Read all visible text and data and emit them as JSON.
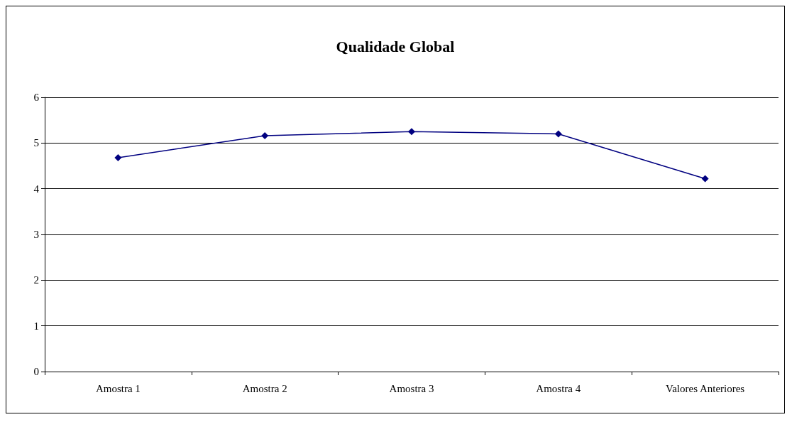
{
  "chart_data": {
    "type": "line",
    "title": "Qualidade Global",
    "categories": [
      "Amostra 1",
      "Amostra 2",
      "Amostra 3",
      "Amostra 4",
      "Valores Anteriores"
    ],
    "series": [
      {
        "color": "#000080",
        "values": [
          4.68,
          5.16,
          5.25,
          5.2,
          4.22
        ]
      }
    ],
    "ylim": [
      0,
      6
    ],
    "yticks": [
      0,
      1,
      2,
      3,
      4,
      5,
      6
    ],
    "grid": "y",
    "marker": "diamond",
    "line_style": "solid"
  }
}
